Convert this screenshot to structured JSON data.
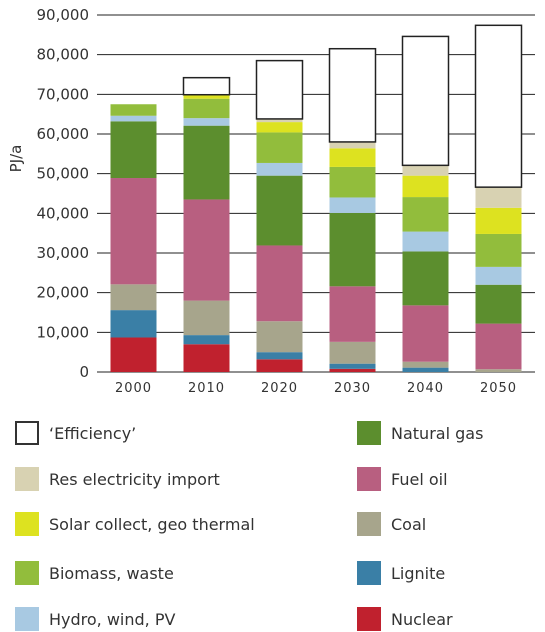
{
  "chart_data": {
    "type": "bar",
    "stacked": true,
    "ylabel": "PJ/a",
    "ylim": [
      0,
      90000
    ],
    "yticks": [
      "0",
      "10,000",
      "20,000",
      "30,000",
      "40,000",
      "50,000",
      "60,000",
      "70,000",
      "80,000",
      "90,000"
    ],
    "ytick_values": [
      0,
      10000,
      20000,
      30000,
      40000,
      50000,
      60000,
      70000,
      80000,
      90000
    ],
    "categories": [
      "2000",
      "2010",
      "2020",
      "2030",
      "2040",
      "2050"
    ],
    "grid": true,
    "series": [
      {
        "name": "Nuclear",
        "color": "#c0212e",
        "values": [
          8700,
          7000,
          3200,
          800,
          0,
          0
        ]
      },
      {
        "name": "Lignite",
        "color": "#3a7fa6",
        "values": [
          6900,
          2300,
          1800,
          1300,
          1100,
          0
        ]
      },
      {
        "name": "Coal",
        "color": "#a7a58c",
        "values": [
          6500,
          8700,
          7800,
          5500,
          1500,
          700
        ]
      },
      {
        "name": "Fuel oil",
        "color": "#b85f80",
        "values": [
          26800,
          25500,
          19100,
          14000,
          14200,
          11500
        ]
      },
      {
        "name": "Natural gas",
        "color": "#5c8e2e",
        "values": [
          14300,
          18600,
          17600,
          18500,
          13600,
          9800
        ]
      },
      {
        "name": "Hydro, wind, PV",
        "color": "#a8c9e2",
        "values": [
          1400,
          1900,
          3200,
          3900,
          5000,
          4500
        ]
      },
      {
        "name": "Biomass, waste",
        "color": "#92bd3c",
        "values": [
          2900,
          4900,
          7700,
          7700,
          8700,
          8300
        ]
      },
      {
        "name": "Solar collect, geo thermal",
        "color": "#dde220",
        "values": [
          0,
          1000,
          2600,
          4700,
          5400,
          6600
        ]
      },
      {
        "name": "Res electricity import",
        "color": "#d8d2b2",
        "values": [
          0,
          0,
          800,
          1600,
          2600,
          5200
        ]
      },
      {
        "name": "'Efficiency'",
        "color": "#ffffff",
        "values": [
          0,
          4300,
          14700,
          23500,
          32500,
          40800
        ]
      }
    ]
  },
  "legend": {
    "items": [
      {
        "label": "‘Efficiency’",
        "color": "#ffffff"
      },
      {
        "label": "Res electricity import",
        "color": "#d8d2b2"
      },
      {
        "label": "Solar collect, geo thermal",
        "color": "#dde220"
      },
      {
        "label": "Biomass, waste",
        "color": "#92bd3c"
      },
      {
        "label": "Hydro, wind, PV",
        "color": "#a8c9e2"
      },
      {
        "label": "Natural gas",
        "color": "#5c8e2e"
      },
      {
        "label": "Fuel oil",
        "color": "#b85f80"
      },
      {
        "label": "Coal",
        "color": "#a7a58c"
      },
      {
        "label": "Lignite",
        "color": "#3a7fa6"
      },
      {
        "label": "Nuclear",
        "color": "#c0212e"
      }
    ]
  }
}
